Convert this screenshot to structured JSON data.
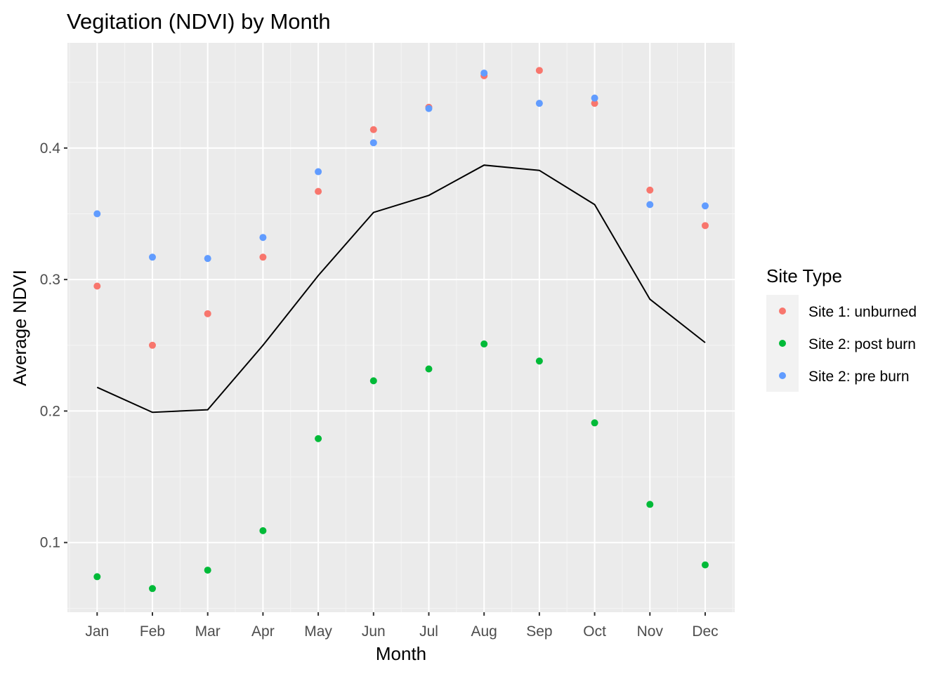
{
  "chart_data": {
    "type": "scatter",
    "title": "Vegitation (NDVI) by Month",
    "xlabel": "Month",
    "ylabel": "Average NDVI",
    "categories": [
      "Jan",
      "Feb",
      "Mar",
      "Apr",
      "May",
      "Jun",
      "Jul",
      "Aug",
      "Sep",
      "Oct",
      "Nov",
      "Dec"
    ],
    "ylim": [
      0.047,
      0.48
    ],
    "yticks": [
      0.1,
      0.2,
      0.3,
      0.4
    ],
    "ytick_labels": [
      "0.1",
      "0.2",
      "0.3",
      "0.4"
    ],
    "grid": true,
    "background": "#ebebeb",
    "legend": {
      "title": "Site Type",
      "position": "right"
    },
    "series": [
      {
        "name": "Site 1: unburned",
        "color": "#F8766D",
        "values": [
          0.295,
          0.25,
          0.274,
          0.317,
          0.367,
          0.414,
          0.431,
          0.455,
          0.459,
          0.434,
          0.368,
          0.341
        ]
      },
      {
        "name": "Site 2: post burn",
        "color": "#00BA38",
        "values": [
          0.074,
          0.065,
          0.079,
          0.109,
          0.179,
          0.223,
          0.232,
          0.251,
          0.238,
          0.191,
          0.129,
          0.083
        ]
      },
      {
        "name": "Site 2: pre burn",
        "color": "#619CFF",
        "values": [
          0.35,
          0.317,
          0.316,
          0.332,
          0.382,
          0.404,
          0.43,
          0.457,
          0.434,
          0.438,
          0.357,
          0.356
        ]
      }
    ],
    "line": {
      "color": "#000000",
      "values": [
        0.218,
        0.199,
        0.201,
        0.25,
        0.303,
        0.351,
        0.364,
        0.387,
        0.383,
        0.357,
        0.285,
        0.252
      ]
    }
  }
}
